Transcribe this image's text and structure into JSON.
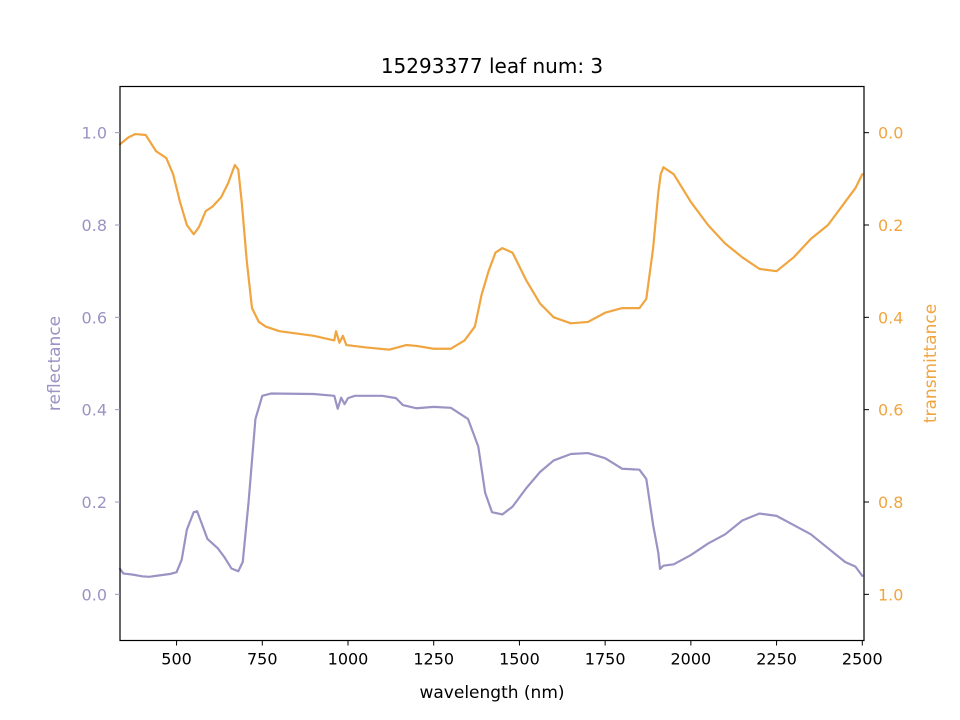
{
  "chart_data": {
    "type": "line",
    "title": "15293377 leaf num: 3",
    "xlabel": "wavelength (nm)",
    "xlim": [
      335,
      2505
    ],
    "x_ticks": [
      500,
      750,
      1000,
      1250,
      1500,
      1750,
      2000,
      2250,
      2500
    ],
    "y_left": {
      "label": "reflectance",
      "lim": [
        -0.1,
        1.1
      ],
      "ticks": [
        "0.0",
        "0.2",
        "0.4",
        "0.6",
        "0.8",
        "1.0"
      ],
      "color": "#9a93c4"
    },
    "y_right": {
      "label": "transmittance",
      "lim": [
        1.1,
        -0.1
      ],
      "inverted": true,
      "ticks": [
        "0.0",
        "0.2",
        "0.4",
        "0.6",
        "0.8",
        "1.0"
      ],
      "color": "#f0a540"
    },
    "series": [
      {
        "axis": "left",
        "color": "#9a93c4",
        "points": [
          [
            335,
            0.055
          ],
          [
            345,
            0.045
          ],
          [
            370,
            0.043
          ],
          [
            400,
            0.039
          ],
          [
            420,
            0.038
          ],
          [
            450,
            0.041
          ],
          [
            480,
            0.044
          ],
          [
            500,
            0.048
          ],
          [
            515,
            0.075
          ],
          [
            530,
            0.14
          ],
          [
            550,
            0.178
          ],
          [
            560,
            0.18
          ],
          [
            575,
            0.15
          ],
          [
            590,
            0.12
          ],
          [
            605,
            0.11
          ],
          [
            620,
            0.1
          ],
          [
            640,
            0.08
          ],
          [
            660,
            0.056
          ],
          [
            680,
            0.05
          ],
          [
            693,
            0.07
          ],
          [
            710,
            0.2
          ],
          [
            730,
            0.38
          ],
          [
            750,
            0.43
          ],
          [
            775,
            0.435
          ],
          [
            900,
            0.434
          ],
          [
            960,
            0.43
          ],
          [
            970,
            0.402
          ],
          [
            980,
            0.426
          ],
          [
            990,
            0.412
          ],
          [
            1000,
            0.425
          ],
          [
            1020,
            0.43
          ],
          [
            1100,
            0.43
          ],
          [
            1140,
            0.425
          ],
          [
            1160,
            0.41
          ],
          [
            1200,
            0.403
          ],
          [
            1250,
            0.406
          ],
          [
            1300,
            0.404
          ],
          [
            1350,
            0.38
          ],
          [
            1380,
            0.32
          ],
          [
            1400,
            0.22
          ],
          [
            1420,
            0.178
          ],
          [
            1450,
            0.173
          ],
          [
            1480,
            0.19
          ],
          [
            1520,
            0.23
          ],
          [
            1560,
            0.265
          ],
          [
            1600,
            0.29
          ],
          [
            1650,
            0.304
          ],
          [
            1700,
            0.306
          ],
          [
            1750,
            0.295
          ],
          [
            1800,
            0.272
          ],
          [
            1850,
            0.27
          ],
          [
            1870,
            0.25
          ],
          [
            1890,
            0.15
          ],
          [
            1905,
            0.09
          ],
          [
            1910,
            0.055
          ],
          [
            1920,
            0.062
          ],
          [
            1950,
            0.065
          ],
          [
            2000,
            0.085
          ],
          [
            2050,
            0.11
          ],
          [
            2100,
            0.13
          ],
          [
            2150,
            0.16
          ],
          [
            2200,
            0.175
          ],
          [
            2250,
            0.17
          ],
          [
            2300,
            0.15
          ],
          [
            2350,
            0.13
          ],
          [
            2400,
            0.1
          ],
          [
            2450,
            0.07
          ],
          [
            2480,
            0.06
          ],
          [
            2500,
            0.04
          ]
        ]
      },
      {
        "axis": "right",
        "color": "#f0a540",
        "points": [
          [
            335,
            0.025
          ],
          [
            360,
            0.01
          ],
          [
            380,
            0.003
          ],
          [
            410,
            0.005
          ],
          [
            440,
            0.04
          ],
          [
            470,
            0.055
          ],
          [
            490,
            0.09
          ],
          [
            510,
            0.15
          ],
          [
            530,
            0.2
          ],
          [
            550,
            0.22
          ],
          [
            565,
            0.205
          ],
          [
            585,
            0.17
          ],
          [
            605,
            0.16
          ],
          [
            630,
            0.14
          ],
          [
            650,
            0.11
          ],
          [
            670,
            0.07
          ],
          [
            680,
            0.08
          ],
          [
            690,
            0.15
          ],
          [
            705,
            0.28
          ],
          [
            720,
            0.38
          ],
          [
            740,
            0.41
          ],
          [
            760,
            0.42
          ],
          [
            800,
            0.43
          ],
          [
            900,
            0.44
          ],
          [
            960,
            0.45
          ],
          [
            965,
            0.43
          ],
          [
            975,
            0.455
          ],
          [
            985,
            0.44
          ],
          [
            995,
            0.46
          ],
          [
            1050,
            0.465
          ],
          [
            1120,
            0.47
          ],
          [
            1170,
            0.46
          ],
          [
            1200,
            0.462
          ],
          [
            1250,
            0.468
          ],
          [
            1300,
            0.468
          ],
          [
            1340,
            0.45
          ],
          [
            1370,
            0.42
          ],
          [
            1390,
            0.35
          ],
          [
            1410,
            0.3
          ],
          [
            1430,
            0.26
          ],
          [
            1450,
            0.25
          ],
          [
            1480,
            0.26
          ],
          [
            1520,
            0.32
          ],
          [
            1560,
            0.37
          ],
          [
            1600,
            0.4
          ],
          [
            1650,
            0.413
          ],
          [
            1700,
            0.41
          ],
          [
            1750,
            0.39
          ],
          [
            1800,
            0.38
          ],
          [
            1850,
            0.38
          ],
          [
            1870,
            0.36
          ],
          [
            1890,
            0.25
          ],
          [
            1905,
            0.13
          ],
          [
            1912,
            0.09
          ],
          [
            1920,
            0.075
          ],
          [
            1950,
            0.09
          ],
          [
            2000,
            0.15
          ],
          [
            2050,
            0.2
          ],
          [
            2100,
            0.24
          ],
          [
            2150,
            0.27
          ],
          [
            2200,
            0.295
          ],
          [
            2250,
            0.3
          ],
          [
            2300,
            0.27
          ],
          [
            2350,
            0.23
          ],
          [
            2400,
            0.2
          ],
          [
            2450,
            0.15
          ],
          [
            2480,
            0.12
          ],
          [
            2500,
            0.09
          ]
        ]
      }
    ]
  }
}
